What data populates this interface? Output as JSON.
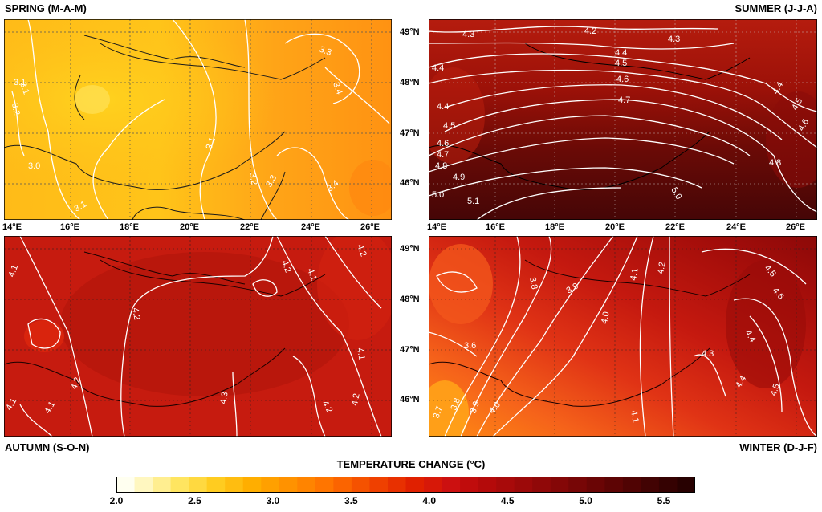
{
  "panels": {
    "spring": {
      "title": "SPRING (M-A-M)",
      "contours": [
        {
          "label": "3.1"
        },
        {
          "label": "3.2"
        },
        {
          "label": "3.1"
        },
        {
          "label": "3.0"
        },
        {
          "label": "3.1"
        },
        {
          "label": "3.2"
        },
        {
          "label": "3.3"
        },
        {
          "label": "3.4"
        },
        {
          "label": "3.3"
        },
        {
          "label": "3.4"
        },
        {
          "label": "3.1"
        }
      ]
    },
    "summer": {
      "title": "SUMMER (J-J-A)",
      "contours": [
        {
          "label": "4.3"
        },
        {
          "label": "4.2"
        },
        {
          "label": "4.3"
        },
        {
          "label": "4.4"
        },
        {
          "label": "4.5"
        },
        {
          "label": "4.4"
        },
        {
          "label": "4.6"
        },
        {
          "label": "4.7"
        },
        {
          "label": "4.4"
        },
        {
          "label": "4.5"
        },
        {
          "label": "4.6"
        },
        {
          "label": "4.4"
        },
        {
          "label": "4.5"
        },
        {
          "label": "4.6"
        },
        {
          "label": "4.7"
        },
        {
          "label": "4.8"
        },
        {
          "label": "4.9"
        },
        {
          "label": "4.8"
        },
        {
          "label": "5.0"
        },
        {
          "label": "5.1"
        },
        {
          "label": "5.0"
        }
      ]
    },
    "autumn": {
      "title": "AUTUMN (S-O-N)",
      "contours": [
        {
          "label": "4.1"
        },
        {
          "label": "4.2"
        },
        {
          "label": "4.2"
        },
        {
          "label": "4.1"
        },
        {
          "label": "4.2"
        },
        {
          "label": "4.1"
        },
        {
          "label": "4.2"
        },
        {
          "label": "4.1"
        },
        {
          "label": "4.1"
        },
        {
          "label": "4.3"
        },
        {
          "label": "4.2"
        },
        {
          "label": "4.2"
        }
      ]
    },
    "winter": {
      "title": "WINTER (D-J-F)",
      "contours": [
        {
          "label": "3.8"
        },
        {
          "label": "3.9"
        },
        {
          "label": "4.0"
        },
        {
          "label": "4.1"
        },
        {
          "label": "4.2"
        },
        {
          "label": "4.5"
        },
        {
          "label": "4.6"
        },
        {
          "label": "4.3"
        },
        {
          "label": "4.4"
        },
        {
          "label": "4.4"
        },
        {
          "label": "4.5"
        },
        {
          "label": "3.6"
        },
        {
          "label": "3.7"
        },
        {
          "label": "3.8"
        },
        {
          "label": "3.9"
        },
        {
          "label": "4.0"
        },
        {
          "label": "4.1"
        }
      ]
    }
  },
  "axes": {
    "lon_ticks": [
      "14°E",
      "16°E",
      "18°E",
      "20°E",
      "22°E",
      "24°E",
      "26°E"
    ],
    "lat_ticks": [
      "49°N",
      "48°N",
      "47°N",
      "46°N"
    ]
  },
  "colorbar": {
    "title": "TEMPERATURE CHANGE (°C)",
    "tick_labels": [
      "2.0",
      "2.5",
      "3.0",
      "3.5",
      "4.0",
      "4.5",
      "5.0",
      "5.5"
    ],
    "min": 2.0,
    "max": 5.7,
    "colors": [
      "#fffff0",
      "#fff7c0",
      "#ffee90",
      "#ffe560",
      "#ffd940",
      "#ffcc20",
      "#ffbd10",
      "#ffae00",
      "#ffa000",
      "#ff9200",
      "#ff8400",
      "#ff7500",
      "#fb6400",
      "#f55200",
      "#ef4000",
      "#e83000",
      "#e02000",
      "#d71808",
      "#cc1010",
      "#c00c0c",
      "#b40a0a",
      "#a80a0a",
      "#9c0909",
      "#900808",
      "#840707",
      "#770606",
      "#6a0505",
      "#5d0404",
      "#500303",
      "#420303",
      "#350202",
      "#280101"
    ]
  }
}
